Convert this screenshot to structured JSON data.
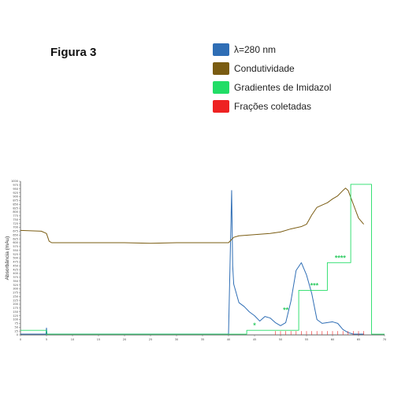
{
  "figure": {
    "title": "Figura 3"
  },
  "legend": [
    {
      "label": "λ=280 nm",
      "color": "#2f6eb5"
    },
    {
      "label": "Condutividade",
      "color": "#7a5c12"
    },
    {
      "label": "Gradientes de Imidazol",
      "color": "#22dd66"
    },
    {
      "label": "Frações coletadas",
      "color": "#ee2222"
    }
  ],
  "chart_data": {
    "type": "line",
    "ylabel": "Absorbância (mAu)",
    "xlim": [
      0,
      70
    ],
    "ylim": [
      0,
      1000
    ],
    "xticks": [
      0,
      5,
      10,
      15,
      20,
      25,
      30,
      35,
      40,
      45,
      50,
      55,
      60,
      65,
      70
    ],
    "xtick_labels": [
      "0",
      "5",
      "10",
      "15",
      "20",
      "25",
      "30",
      "35",
      "40",
      "45",
      "50",
      "55",
      "60",
      "65",
      "70"
    ],
    "yticks": [
      0,
      25,
      50,
      75,
      100,
      125,
      150,
      175,
      200,
      225,
      250,
      275,
      300,
      325,
      350,
      375,
      400,
      425,
      450,
      475,
      500,
      525,
      550,
      575,
      600,
      625,
      650,
      675,
      700,
      725,
      750,
      775,
      800,
      825,
      850,
      875,
      900,
      925,
      950,
      975,
      1000
    ],
    "series": [
      {
        "name": "λ=280 nm",
        "color": "#2f6eb5",
        "x": [
          0,
          4.9,
          5,
          5.1,
          6,
          40,
          40.6,
          40.8,
          41,
          42,
          43,
          44,
          45,
          46,
          47,
          48,
          49,
          50,
          51,
          52,
          53,
          54,
          55,
          56,
          57,
          58,
          59,
          60,
          61,
          62,
          63,
          64,
          65,
          66
        ],
        "y": [
          5,
          5,
          45,
          5,
          5,
          5,
          940,
          450,
          330,
          210,
          185,
          150,
          125,
          90,
          120,
          110,
          80,
          60,
          80,
          220,
          420,
          470,
          390,
          270,
          100,
          75,
          80,
          85,
          75,
          35,
          15,
          5,
          5,
          5
        ]
      },
      {
        "name": "Condutividade",
        "color": "#7a5c12",
        "x": [
          0,
          4,
          5,
          5.5,
          6,
          10,
          15,
          20,
          25,
          30,
          35,
          40,
          41,
          42,
          44,
          46,
          48,
          50,
          52,
          54,
          55,
          56,
          57,
          58,
          59,
          60,
          61,
          62,
          62.5,
          63,
          64,
          65,
          66
        ],
        "y": [
          680,
          675,
          660,
          610,
          600,
          600,
          600,
          600,
          596,
          600,
          600,
          600,
          635,
          645,
          650,
          655,
          660,
          670,
          690,
          705,
          720,
          780,
          830,
          845,
          860,
          885,
          905,
          940,
          955,
          940,
          850,
          760,
          720
        ]
      },
      {
        "name": "Gradientes de Imidazol",
        "color": "#22dd66",
        "x": [
          0,
          5,
          5,
          43.5,
          43.5,
          53.5,
          53.5,
          59,
          59,
          63.5,
          63.5,
          67.5,
          67.5,
          70
        ],
        "y": [
          30,
          30,
          5,
          5,
          30,
          30,
          290,
          290,
          470,
          470,
          980,
          980,
          5,
          5
        ]
      },
      {
        "name": "Frações coletadas",
        "color": "#ee2222",
        "marks_x": [
          49,
          50,
          51,
          52,
          53,
          54,
          55,
          56,
          57,
          58,
          59,
          60,
          61,
          62,
          63,
          64,
          65,
          66
        ],
        "mark_height": 25
      }
    ],
    "annotations": [
      {
        "text": "*",
        "x": 45,
        "y": 45
      },
      {
        "text": "**",
        "x": 51,
        "y": 145
      },
      {
        "text": "***",
        "x": 56.5,
        "y": 305
      },
      {
        "text": "****",
        "x": 61.5,
        "y": 485
      }
    ]
  }
}
